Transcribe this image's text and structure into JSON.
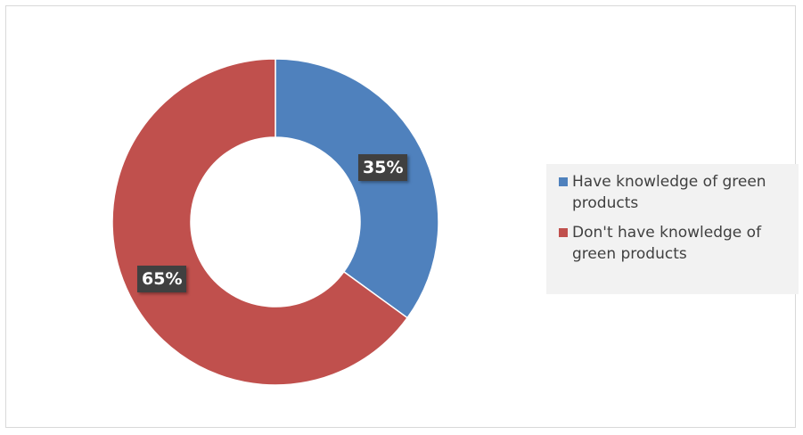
{
  "chart_data": {
    "type": "pie",
    "variant": "donut",
    "title": "",
    "slices": [
      {
        "label": "Have knowledge of green products",
        "value": 35,
        "value_label": "35%",
        "color": "#4f81bd"
      },
      {
        "label": "Don't have knowledge of green products",
        "value": 65,
        "value_label": "65%",
        "color": "#c0504d"
      }
    ],
    "legend_placement": "right"
  }
}
